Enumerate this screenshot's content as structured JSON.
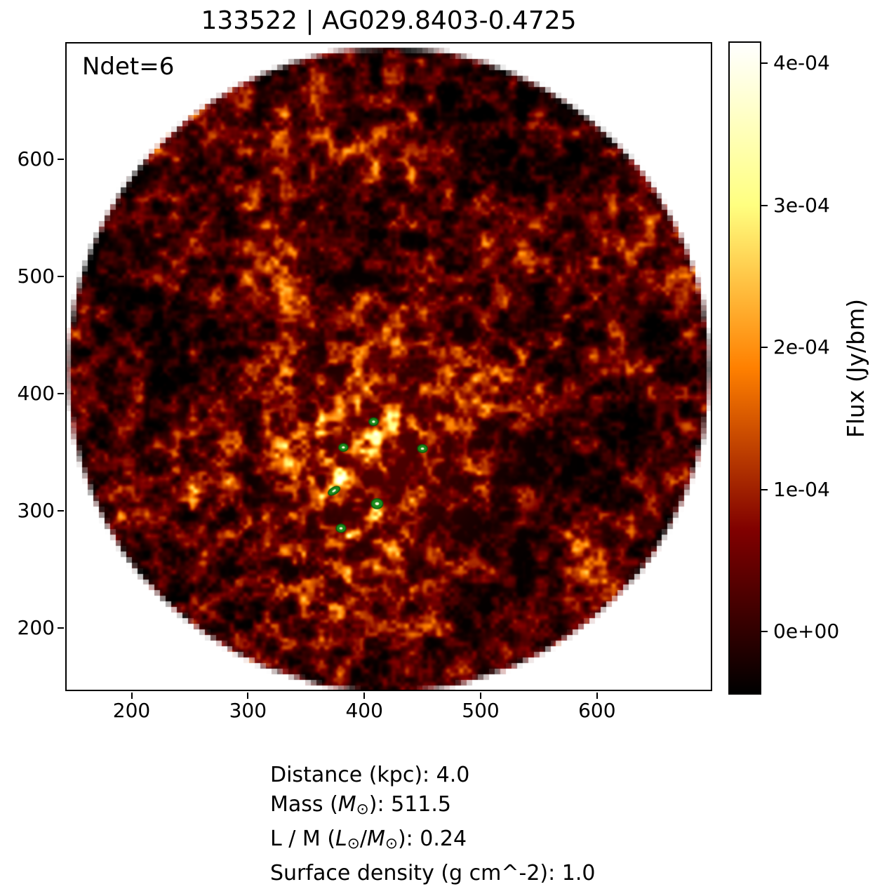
{
  "chart_data": {
    "type": "heatmap",
    "title": "133522 | AG029.8403-0.4725",
    "annotation": "Ndet=6",
    "xlabel": "",
    "ylabel": "",
    "xlim": [
      143,
      699
    ],
    "ylim": [
      146,
      700
    ],
    "x_ticks": [
      200,
      300,
      400,
      500,
      600
    ],
    "y_ticks": [
      200,
      300,
      400,
      500,
      600
    ],
    "grid": false,
    "field_circle": {
      "cx": 421,
      "cy": 420,
      "r": 276
    },
    "hot_region": {
      "cx": 420,
      "cy": 352,
      "note": "bright emission clump near map centre"
    },
    "colormap": "afmhot",
    "colormap_stops": [
      "#000000",
      "#400000",
      "#800000",
      "#bf4000",
      "#ff8000",
      "#ffbf40",
      "#ffff80",
      "#ffffbf",
      "#ffffff"
    ],
    "colorbar": {
      "label": "Flux (Jy/bm)",
      "vmin": -4.45e-05,
      "vmax": 0.0004155,
      "ticks": [
        {
          "label": "0e+00",
          "value": 0.0
        },
        {
          "label": "1e-04",
          "value": 0.0001
        },
        {
          "label": "2e-04",
          "value": 0.0002
        },
        {
          "label": "3e-04",
          "value": 0.0003
        },
        {
          "label": "4e-04",
          "value": 0.0004
        }
      ]
    },
    "detections": [
      {
        "x": 408,
        "y": 376,
        "rx": 4.0,
        "ry": 3.3,
        "angle_deg": 0
      },
      {
        "x": 382,
        "y": 354,
        "rx": 4.0,
        "ry": 3.3,
        "angle_deg": 0
      },
      {
        "x": 450,
        "y": 353,
        "rx": 4.2,
        "ry": 3.4,
        "angle_deg": 0
      },
      {
        "x": 374,
        "y": 317,
        "rx": 5.5,
        "ry": 2.9,
        "angle_deg": 30
      },
      {
        "x": 411,
        "y": 306,
        "rx": 5.0,
        "ry": 4.3,
        "angle_deg": 0
      },
      {
        "x": 380,
        "y": 285,
        "rx": 4.2,
        "ry": 3.5,
        "angle_deg": 0
      }
    ],
    "marker_color": "#1e8b1e",
    "marker_edge_color": "#0a5a0a",
    "marker_center_color": "#ffffe0"
  },
  "info_panel": {
    "lines": [
      {
        "text": "Distance (kpc): 4.0",
        "parts": [
          {
            "t": "Distance (kpc): 4.0"
          }
        ]
      },
      {
        "text": "Mass (M⊙): 511.5",
        "parts": [
          {
            "t": "Mass ("
          },
          {
            "t": "M",
            "style": "it"
          },
          {
            "t": "⊙",
            "style": "sub"
          },
          {
            "t": "): 511.5"
          }
        ]
      },
      {
        "text": "L / M (L⊙/M⊙): 0.24",
        "parts": [
          {
            "t": "L / M ("
          },
          {
            "t": "L",
            "style": "it"
          },
          {
            "t": "⊙",
            "style": "sub"
          },
          {
            "t": "/"
          },
          {
            "t": "M",
            "style": "it"
          },
          {
            "t": "⊙",
            "style": "sub"
          },
          {
            "t": "): 0.24"
          }
        ]
      },
      {
        "text": "Surface density (g cm^-2): 1.0",
        "parts": [
          {
            "t": "Surface density (g cm^-2): 1.0"
          }
        ]
      }
    ]
  }
}
